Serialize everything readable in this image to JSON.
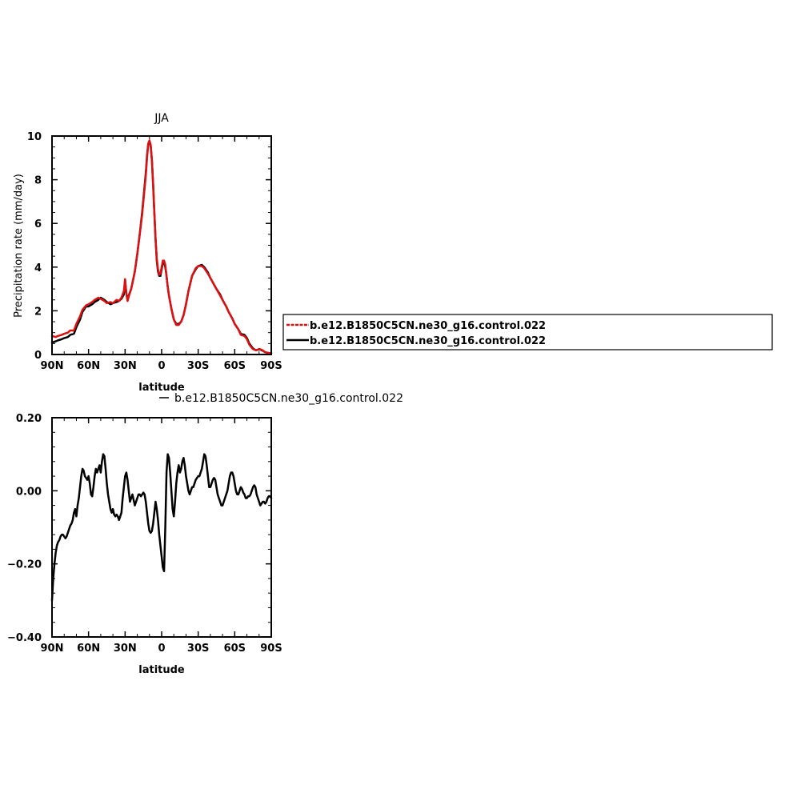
{
  "chart_data": [
    {
      "type": "line",
      "title": "JJA",
      "xlabel": "latitude",
      "ylabel": "Precipitation rate (mm/day)",
      "xlim": [
        90,
        -90
      ],
      "ylim": [
        0,
        10
      ],
      "x_ticks": [
        90,
        60,
        30,
        0,
        -30,
        -60,
        -90
      ],
      "x_tick_labels": [
        "90N",
        "60N",
        "30N",
        "0",
        "30S",
        "60S",
        "90S"
      ],
      "y_ticks": [
        0,
        2,
        4,
        6,
        8,
        10
      ],
      "y_tick_labels": [
        "0",
        "2",
        "4",
        "6",
        "8",
        "10"
      ],
      "legend": {
        "placement": "right",
        "entries": [
          "b.e12.B1850C5CN.ne30_g16.control.022",
          "b.e12.B1850C5CN.ne30_g16.control.022"
        ]
      },
      "series": [
        {
          "name": "b.e12.B1850C5CN.ne30_g16.control.022",
          "color": "#dd1111",
          "x": [
            90,
            87,
            85,
            82,
            80,
            77,
            75,
            72,
            70,
            67,
            65,
            62,
            60,
            57,
            55,
            52,
            50,
            47,
            45,
            42,
            40,
            37,
            35,
            33,
            31,
            30,
            29,
            28,
            27,
            25,
            22,
            20,
            18,
            16,
            15,
            13,
            12,
            11,
            10,
            9,
            8,
            7,
            6,
            5,
            4,
            3,
            2,
            1,
            0,
            -1,
            -2,
            -3,
            -4,
            -5,
            -6,
            -8,
            -10,
            -12,
            -14,
            -16,
            -18,
            -20,
            -22,
            -25,
            -28,
            -30,
            -33,
            -35,
            -38,
            -40,
            -42,
            -45,
            -48,
            -50,
            -53,
            -55,
            -58,
            -60,
            -63,
            -65,
            -68,
            -70,
            -72,
            -74,
            -75,
            -77,
            -78,
            -80,
            -82,
            -84,
            -85,
            -87,
            -90
          ],
          "y": [
            0.85,
            0.8,
            0.85,
            0.9,
            0.95,
            1.0,
            1.1,
            1.1,
            1.4,
            1.75,
            2.05,
            2.25,
            2.3,
            2.4,
            2.5,
            2.6,
            2.55,
            2.45,
            2.35,
            2.4,
            2.35,
            2.5,
            2.45,
            2.6,
            2.9,
            3.45,
            2.8,
            2.45,
            2.65,
            3.0,
            3.8,
            4.6,
            5.5,
            6.4,
            7.0,
            8.2,
            9.0,
            9.65,
            9.8,
            9.6,
            8.9,
            7.8,
            6.5,
            5.3,
            4.4,
            3.9,
            3.65,
            3.7,
            4.0,
            4.3,
            4.3,
            4.1,
            3.6,
            3.1,
            2.7,
            2.1,
            1.6,
            1.35,
            1.35,
            1.5,
            1.8,
            2.3,
            2.9,
            3.6,
            3.95,
            4.05,
            4.05,
            3.95,
            3.7,
            3.5,
            3.3,
            3.0,
            2.7,
            2.5,
            2.2,
            1.95,
            1.65,
            1.4,
            1.15,
            0.9,
            0.85,
            0.7,
            0.45,
            0.3,
            0.25,
            0.2,
            0.2,
            0.25,
            0.22,
            0.15,
            0.1,
            0.08,
            0.05
          ]
        },
        {
          "name": "b.e12.B1850C5CN.ne30_g16.control.022",
          "color": "#000000",
          "x": [
            90,
            87,
            85,
            82,
            80,
            77,
            75,
            72,
            70,
            67,
            65,
            62,
            60,
            57,
            55,
            52,
            50,
            47,
            45,
            42,
            40,
            37,
            35,
            33,
            31,
            30,
            29,
            28,
            27,
            25,
            22,
            20,
            18,
            16,
            15,
            13,
            12,
            11,
            10,
            9,
            8,
            7,
            6,
            5,
            4,
            3,
            2,
            1,
            0,
            -1,
            -2,
            -3,
            -4,
            -5,
            -6,
            -8,
            -10,
            -12,
            -14,
            -16,
            -18,
            -20,
            -22,
            -25,
            -28,
            -30,
            -33,
            -35,
            -38,
            -40,
            -42,
            -45,
            -48,
            -50,
            -53,
            -55,
            -58,
            -60,
            -63,
            -65,
            -68,
            -70,
            -72,
            -74,
            -75,
            -77,
            -78,
            -80,
            -82,
            -84,
            -85,
            -87,
            -90
          ],
          "y": [
            0.55,
            0.6,
            0.65,
            0.7,
            0.75,
            0.8,
            0.9,
            0.95,
            1.25,
            1.6,
            1.95,
            2.2,
            2.2,
            2.3,
            2.4,
            2.5,
            2.6,
            2.5,
            2.4,
            2.3,
            2.35,
            2.4,
            2.45,
            2.55,
            2.75,
            3.4,
            2.8,
            2.5,
            2.7,
            3.0,
            3.8,
            4.6,
            5.5,
            6.5,
            7.1,
            8.3,
            9.1,
            9.65,
            9.75,
            9.55,
            8.9,
            7.8,
            6.5,
            5.3,
            4.3,
            3.8,
            3.6,
            3.6,
            3.9,
            4.2,
            4.25,
            4.0,
            3.6,
            3.1,
            2.7,
            2.1,
            1.6,
            1.4,
            1.4,
            1.5,
            1.8,
            2.3,
            2.9,
            3.6,
            3.9,
            4.05,
            4.1,
            4.0,
            3.75,
            3.5,
            3.3,
            3.0,
            2.75,
            2.5,
            2.2,
            1.95,
            1.65,
            1.4,
            1.15,
            0.95,
            0.9,
            0.75,
            0.5,
            0.35,
            0.28,
            0.2,
            0.2,
            0.24,
            0.2,
            0.14,
            0.1,
            0.08,
            0.05
          ]
        }
      ]
    },
    {
      "type": "line",
      "title": "b.e12.B1850C5CN.ne30_g16.control.022",
      "xlabel": "latitude",
      "ylabel": "",
      "xlim": [
        90,
        -90
      ],
      "ylim": [
        -0.4,
        0.2
      ],
      "x_ticks": [
        90,
        60,
        30,
        0,
        -30,
        -60,
        -90
      ],
      "x_tick_labels": [
        "90N",
        "60N",
        "30N",
        "0",
        "30S",
        "60S",
        "90S"
      ],
      "y_ticks": [
        0.2,
        0.0,
        -0.2,
        -0.4
      ],
      "y_tick_labels": [
        "0.20",
        "0.00",
        "−0.20",
        "−0.40"
      ],
      "legend": {
        "placement": "top",
        "entries": [
          "b.e12.B1850C5CN.ne30_g16.control.022"
        ]
      },
      "series": [
        {
          "name": "b.e12.B1850C5CN.ne30_g16.control.022",
          "color": "#000000",
          "x": [
            90,
            89,
            88,
            87,
            86,
            85,
            84,
            83,
            82,
            81,
            80,
            79,
            78,
            77,
            76,
            75,
            74,
            73,
            72,
            71,
            70,
            69,
            68,
            67,
            66,
            65,
            64,
            63,
            62,
            61,
            60,
            59,
            58,
            57,
            56,
            55,
            54,
            53,
            52,
            51,
            50,
            49,
            48,
            47,
            46,
            45,
            44,
            43,
            42,
            41,
            40,
            39,
            38,
            37,
            36,
            35,
            34,
            33,
            32,
            31,
            30,
            29,
            28,
            27,
            26,
            25,
            24,
            23,
            22,
            21,
            20,
            19,
            18,
            17,
            16,
            15,
            14,
            13,
            12,
            11,
            10,
            9,
            8,
            7,
            6,
            5,
            4,
            3,
            2,
            1,
            0,
            -1,
            -2,
            -3,
            -4,
            -5,
            -6,
            -7,
            -8,
            -9,
            -10,
            -11,
            -12,
            -13,
            -14,
            -15,
            -16,
            -17,
            -18,
            -19,
            -20,
            -21,
            -22,
            -23,
            -24,
            -25,
            -26,
            -27,
            -28,
            -29,
            -30,
            -31,
            -32,
            -33,
            -34,
            -35,
            -36,
            -37,
            -38,
            -39,
            -40,
            -41,
            -42,
            -43,
            -44,
            -45,
            -46,
            -47,
            -48,
            -49,
            -50,
            -51,
            -52,
            -53,
            -54,
            -55,
            -56,
            -57,
            -58,
            -59,
            -60,
            -61,
            -62,
            -63,
            -64,
            -65,
            -66,
            -67,
            -68,
            -69,
            -70,
            -71,
            -72,
            -73,
            -74,
            -75,
            -76,
            -77,
            -78,
            -79,
            -80,
            -81,
            -82,
            -83,
            -84,
            -85,
            -86,
            -87,
            -88,
            -89,
            -90
          ],
          "y": [
            -0.3,
            -0.24,
            -0.2,
            -0.17,
            -0.15,
            -0.14,
            -0.135,
            -0.125,
            -0.12,
            -0.12,
            -0.125,
            -0.13,
            -0.125,
            -0.115,
            -0.105,
            -0.095,
            -0.09,
            -0.08,
            -0.06,
            -0.05,
            -0.07,
            -0.04,
            -0.02,
            0.01,
            0.04,
            0.06,
            0.055,
            0.04,
            0.035,
            0.03,
            0.04,
            0.02,
            -0.01,
            -0.015,
            0.01,
            0.04,
            0.06,
            0.05,
            0.06,
            0.07,
            0.05,
            0.08,
            0.1,
            0.095,
            0.06,
            0.02,
            -0.01,
            -0.03,
            -0.05,
            -0.06,
            -0.05,
            -0.065,
            -0.07,
            -0.065,
            -0.07,
            -0.08,
            -0.07,
            -0.06,
            -0.02,
            0.01,
            0.04,
            0.05,
            0.03,
            0.0,
            -0.03,
            -0.02,
            -0.01,
            -0.025,
            -0.04,
            -0.03,
            -0.02,
            -0.01,
            -0.01,
            -0.015,
            -0.01,
            -0.005,
            -0.01,
            -0.03,
            -0.06,
            -0.09,
            -0.11,
            -0.115,
            -0.11,
            -0.09,
            -0.06,
            -0.03,
            -0.05,
            -0.08,
            -0.12,
            -0.15,
            -0.18,
            -0.21,
            -0.22,
            -0.1,
            0.05,
            0.1,
            0.09,
            0.05,
            0.0,
            -0.05,
            -0.07,
            -0.03,
            0.02,
            0.05,
            0.07,
            0.05,
            0.06,
            0.08,
            0.09,
            0.07,
            0.04,
            0.02,
            0.0,
            -0.01,
            0.0,
            0.01,
            0.01,
            0.02,
            0.03,
            0.035,
            0.04,
            0.04,
            0.05,
            0.06,
            0.08,
            0.1,
            0.095,
            0.07,
            0.04,
            0.01,
            0.01,
            0.02,
            0.03,
            0.035,
            0.03,
            0.01,
            -0.01,
            -0.02,
            -0.03,
            -0.04,
            -0.04,
            -0.03,
            -0.02,
            -0.01,
            0.0,
            0.02,
            0.04,
            0.05,
            0.05,
            0.04,
            0.02,
            0.0,
            -0.01,
            -0.01,
            0.0,
            0.01,
            0.005,
            -0.005,
            -0.01,
            -0.02,
            -0.02,
            -0.015,
            -0.015,
            -0.01,
            0.0,
            0.01,
            0.015,
            0.01,
            -0.01,
            -0.02,
            -0.03,
            -0.04,
            -0.035,
            -0.03,
            -0.03,
            -0.035,
            -0.03,
            -0.02,
            -0.015,
            -0.015,
            -0.02
          ]
        }
      ]
    }
  ]
}
